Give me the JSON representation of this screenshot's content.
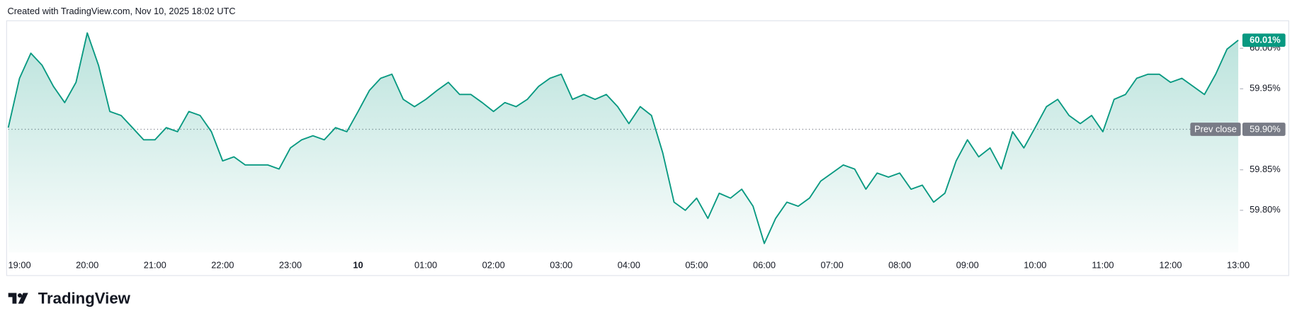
{
  "caption": "Created with TradingView.com, Nov 10, 2025 18:02 UTC",
  "brand": "TradingView",
  "chart_data": {
    "type": "area",
    "color": "#089981",
    "categories": [
      null,
      "19:00",
      null,
      null,
      null,
      null,
      null,
      "20:00",
      null,
      null,
      null,
      null,
      null,
      "21:00",
      null,
      null,
      null,
      null,
      null,
      "22:00",
      null,
      null,
      null,
      null,
      null,
      "23:00",
      null,
      null,
      null,
      null,
      null,
      "10",
      null,
      null,
      null,
      null,
      null,
      "01:00",
      null,
      null,
      null,
      null,
      null,
      "02:00",
      null,
      null,
      null,
      null,
      null,
      "03:00",
      null,
      null,
      null,
      null,
      null,
      "04:00",
      null,
      null,
      null,
      null,
      null,
      "05:00",
      null,
      null,
      null,
      null,
      null,
      "06:00",
      null,
      null,
      null,
      null,
      null,
      "07:00",
      null,
      null,
      null,
      null,
      null,
      "08:00",
      null,
      null,
      null,
      null,
      null,
      "09:00",
      null,
      null,
      null,
      null,
      null,
      "10:00",
      null,
      null,
      null,
      null,
      null,
      "11:00",
      null,
      null,
      null,
      null,
      null,
      "12:00",
      null,
      null,
      null,
      null,
      null,
      "13:00"
    ],
    "values": [
      59.902,
      59.963,
      59.994,
      59.979,
      59.953,
      59.933,
      59.958,
      60.019,
      59.979,
      59.922,
      59.917,
      59.902,
      59.887,
      59.887,
      59.902,
      59.897,
      59.922,
      59.917,
      59.897,
      59.861,
      59.866,
      59.856,
      59.856,
      59.856,
      59.851,
      59.877,
      59.887,
      59.892,
      59.887,
      59.902,
      59.897,
      59.922,
      59.948,
      59.963,
      59.968,
      59.937,
      59.928,
      59.937,
      59.948,
      59.958,
      59.943,
      59.943,
      59.933,
      59.922,
      59.933,
      59.928,
      59.937,
      59.953,
      59.963,
      59.968,
      59.937,
      59.943,
      59.937,
      59.943,
      59.928,
      59.907,
      59.928,
      59.917,
      59.871,
      59.81,
      59.8,
      59.815,
      59.79,
      59.821,
      59.815,
      59.826,
      59.805,
      59.759,
      59.79,
      59.81,
      59.805,
      59.815,
      59.836,
      59.846,
      59.856,
      59.851,
      59.826,
      59.846,
      59.841,
      59.846,
      59.826,
      59.831,
      59.81,
      59.821,
      59.861,
      59.887,
      59.866,
      59.877,
      59.851,
      59.897,
      59.877,
      59.902,
      59.928,
      59.937,
      59.917,
      59.907,
      59.917,
      59.897,
      59.937,
      59.943,
      59.963,
      59.968,
      59.968,
      59.958,
      59.963,
      59.953,
      59.943,
      59.968,
      59.999,
      60.01
    ],
    "ylim": [
      59.748,
      60.034
    ],
    "yticks": [
      {
        "value": 59.8,
        "label": "59.80%"
      },
      {
        "value": 59.85,
        "label": "59.85%"
      },
      {
        "value": 59.95,
        "label": "59.95%"
      },
      {
        "value": 60.0,
        "label": "60.00%"
      }
    ],
    "prev_close": {
      "label": "Prev close",
      "value": 59.9,
      "value_label": "59.90%"
    },
    "last_price": {
      "value": 60.01,
      "label": "60.01%"
    }
  }
}
